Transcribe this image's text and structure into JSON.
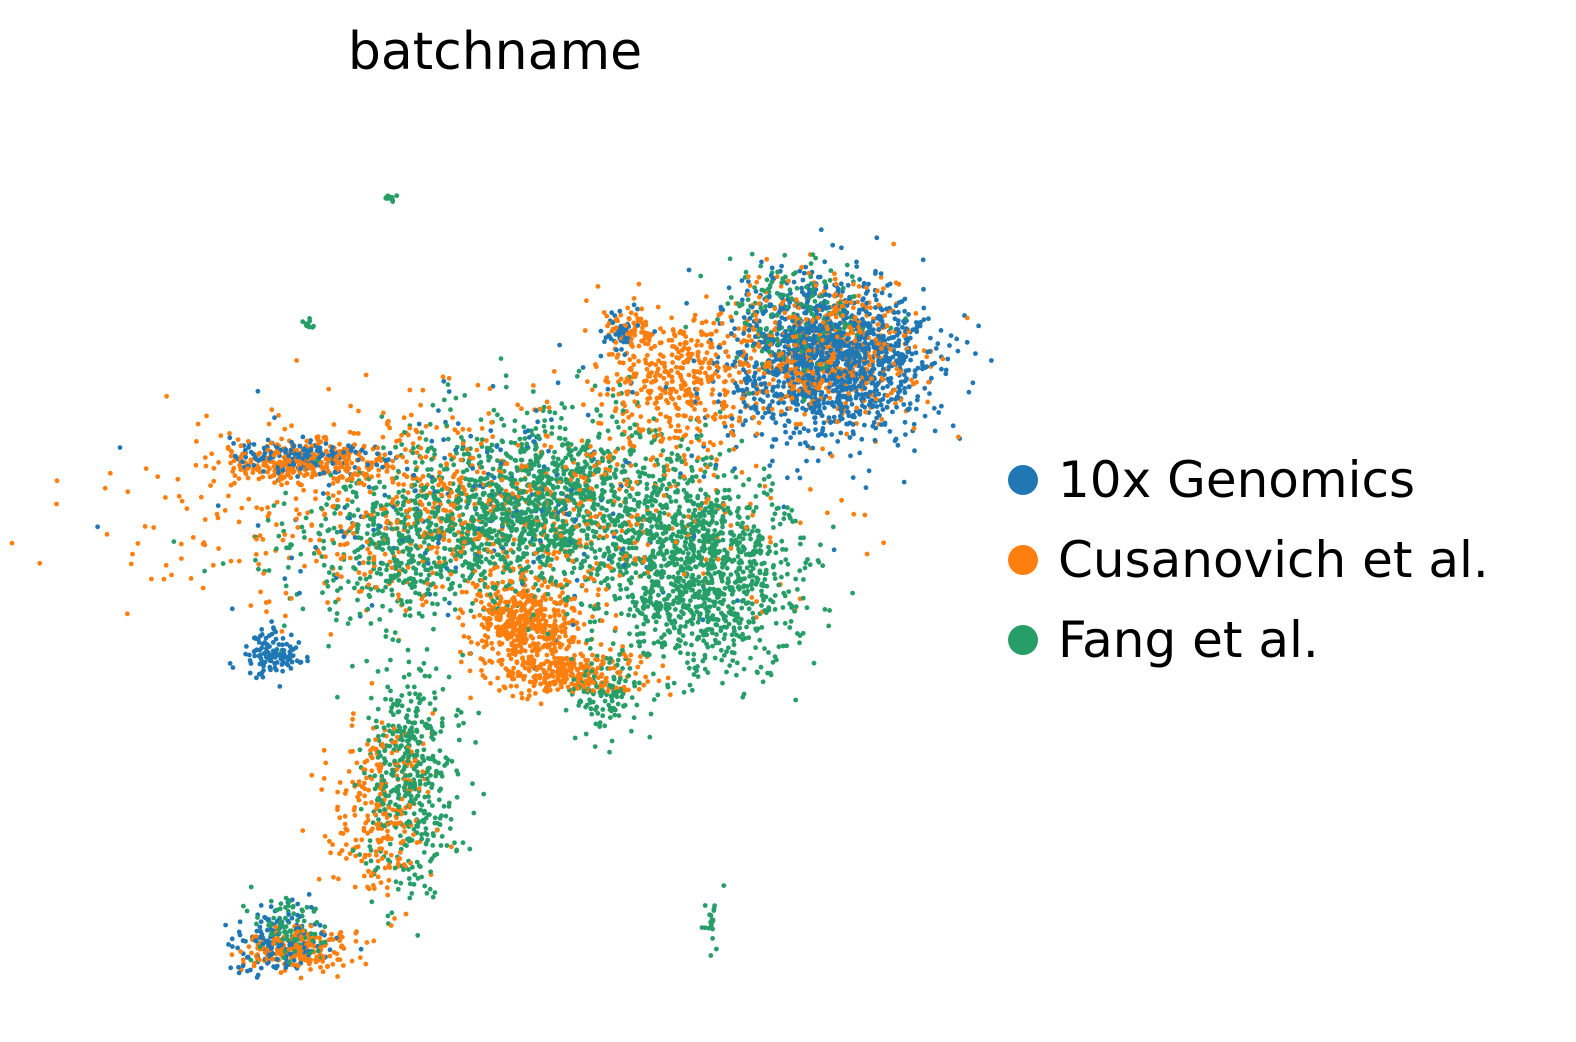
{
  "chart_data": {
    "type": "scatter",
    "title": "batchname",
    "xlabel": "",
    "ylabel": "",
    "grid": false,
    "axes_visible": false,
    "legend_position": "right",
    "series": [
      {
        "name": "10x Genomics",
        "color": "#1f77b4",
        "clusters": [
          {
            "cx": 8.4,
            "cy": 6.4,
            "sx": 0.55,
            "sy": 0.55,
            "n": 1400
          },
          {
            "cx": 2.3,
            "cy": 2.2,
            "sx": 0.15,
            "sy": 0.15,
            "n": 120
          },
          {
            "cx": 2.6,
            "cy": 5.0,
            "sx": 0.4,
            "sy": 0.12,
            "n": 160
          },
          {
            "cx": 2.4,
            "cy": -1.9,
            "sx": 0.25,
            "sy": 0.2,
            "n": 150
          },
          {
            "cx": 4.8,
            "cy": 4.3,
            "sx": 1.5,
            "sy": 0.8,
            "n": 200
          },
          {
            "cx": 6.1,
            "cy": 6.8,
            "sx": 0.1,
            "sy": 0.15,
            "n": 40
          }
        ]
      },
      {
        "name": "Cusanovich et al.",
        "color": "#ff7f0e",
        "clusters": [
          {
            "cx": 5.1,
            "cy": 2.6,
            "sx": 0.3,
            "sy": 0.35,
            "n": 500
          },
          {
            "cx": 5.6,
            "cy": 1.9,
            "sx": 0.4,
            "sy": 0.15,
            "n": 250
          },
          {
            "cx": 6.7,
            "cy": 6.1,
            "sx": 0.4,
            "sy": 0.5,
            "n": 400
          },
          {
            "cx": 8.3,
            "cy": 6.5,
            "sx": 0.5,
            "sy": 0.5,
            "n": 550
          },
          {
            "cx": 2.7,
            "cy": 4.9,
            "sx": 0.5,
            "sy": 0.15,
            "n": 300
          },
          {
            "cx": 4.3,
            "cy": 4.2,
            "sx": 1.6,
            "sy": 0.8,
            "n": 800
          },
          {
            "cx": 3.5,
            "cy": 0.0,
            "sx": 0.3,
            "sy": 0.6,
            "n": 250
          },
          {
            "cx": 2.6,
            "cy": -2.0,
            "sx": 0.3,
            "sy": 0.15,
            "n": 200
          },
          {
            "cx": 6.2,
            "cy": 6.8,
            "sx": 0.1,
            "sy": 0.15,
            "n": 50
          }
        ]
      },
      {
        "name": "Fang et al.",
        "color": "#279e68",
        "clusters": [
          {
            "cx": 5.4,
            "cy": 4.4,
            "sx": 0.8,
            "sy": 0.6,
            "n": 1200
          },
          {
            "cx": 7.0,
            "cy": 3.3,
            "sx": 0.5,
            "sy": 0.7,
            "n": 1100
          },
          {
            "cx": 3.8,
            "cy": 0.5,
            "sx": 0.25,
            "sy": 0.8,
            "n": 450
          },
          {
            "cx": 4.0,
            "cy": 3.7,
            "sx": 0.8,
            "sy": 0.5,
            "n": 600
          },
          {
            "cx": 5.9,
            "cy": 1.6,
            "sx": 0.2,
            "sy": 0.3,
            "n": 120
          },
          {
            "cx": 3.6,
            "cy": 8.7,
            "sx": 0.03,
            "sy": 0.03,
            "n": 12
          },
          {
            "cx": 2.7,
            "cy": 6.9,
            "sx": 0.03,
            "sy": 0.03,
            "n": 10
          },
          {
            "cx": 7.1,
            "cy": -1.6,
            "sx": 0.04,
            "sy": 0.2,
            "n": 20
          },
          {
            "cx": 8.0,
            "cy": 7.0,
            "sx": 0.4,
            "sy": 0.4,
            "n": 200
          },
          {
            "cx": 2.5,
            "cy": -1.7,
            "sx": 0.2,
            "sy": 0.2,
            "n": 100
          }
        ]
      }
    ],
    "xlim": [
      0.0,
      9.6
    ],
    "ylim": [
      -2.6,
      9.8
    ]
  }
}
